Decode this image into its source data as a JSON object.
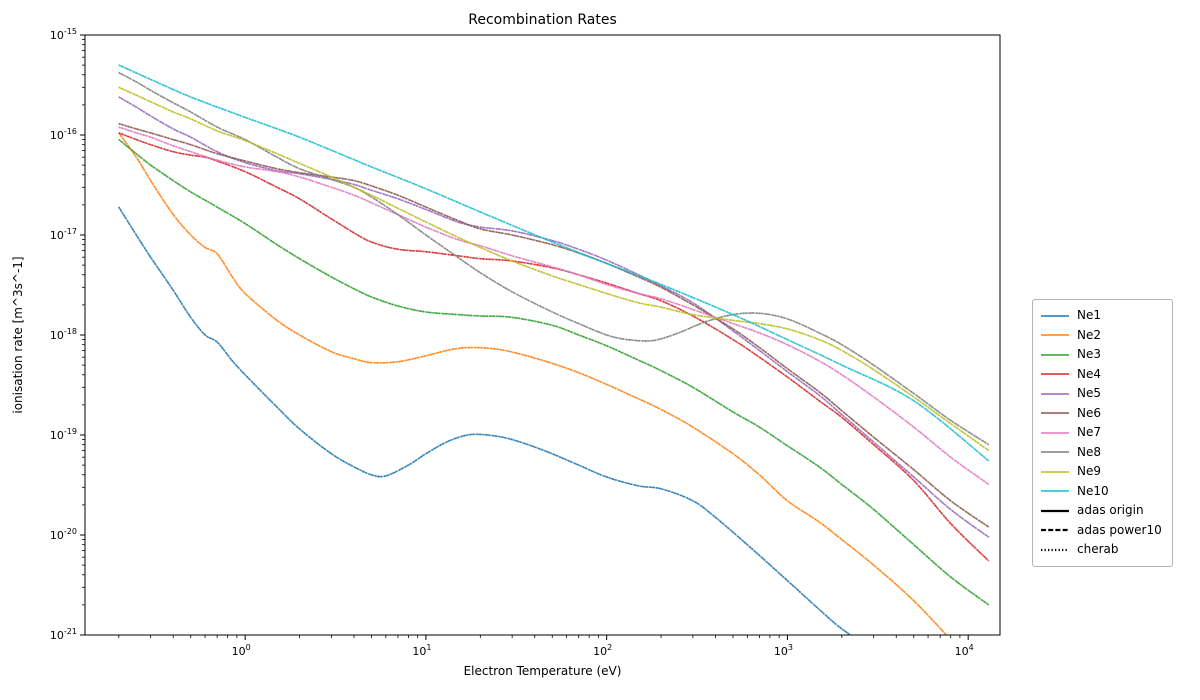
{
  "figure": {
    "background": "#ffffff"
  },
  "chart_data": {
    "type": "line",
    "title": "Recombination Rates",
    "xlabel": "Electron Temperature (eV)",
    "ylabel": "ionisation rate [m^3s^-1]",
    "x_scale": "log",
    "y_scale": "log",
    "grid": false,
    "legend_position": "right-outside",
    "xlim": [
      0.13,
      15000
    ],
    "ylim": [
      1e-21,
      1e-15
    ],
    "x_tick_exponents": [
      0,
      1,
      2,
      3,
      4
    ],
    "y_tick_exponents": [
      -15,
      -16,
      -17,
      -18,
      -19,
      -20,
      -21
    ],
    "style_legend": [
      {
        "label": "adas origin",
        "style": "solid"
      },
      {
        "label": "adas power10",
        "style": "dashed"
      },
      {
        "label": "cherab",
        "style": "dotted"
      }
    ],
    "series": [
      {
        "name": "Ne1",
        "color": "#1f77b4",
        "x": [
          0.2,
          0.25,
          0.3,
          0.4,
          0.5,
          0.6,
          0.7,
          0.85,
          1,
          1.5,
          2,
          3,
          4,
          5,
          6,
          8,
          10,
          13,
          17,
          22,
          30,
          45,
          70,
          100,
          150,
          200,
          300,
          400,
          600,
          1000,
          1500,
          2000,
          2700
        ],
        "y": [
          1.9e-17,
          1e-17,
          6e-18,
          2.8e-18,
          1.5e-18,
          1e-18,
          8.5e-19,
          5.5e-19,
          4e-19,
          1.9e-19,
          1.15e-19,
          6.5e-20,
          4.8e-20,
          4e-20,
          3.9e-20,
          5e-20,
          6.5e-20,
          8.5e-20,
          1e-19,
          1e-19,
          9e-20,
          7e-20,
          5e-20,
          3.8e-20,
          3.1e-20,
          2.9e-20,
          2.2e-20,
          1.5e-20,
          8e-21,
          3.5e-21,
          1.8e-21,
          1.15e-21,
          8e-22
        ]
      },
      {
        "name": "Ne2",
        "color": "#ff7f0e",
        "x": [
          0.2,
          0.25,
          0.3,
          0.4,
          0.5,
          0.6,
          0.7,
          0.85,
          1,
          1.5,
          2,
          3,
          4,
          5,
          7,
          10,
          14,
          18,
          25,
          35,
          50,
          70,
          100,
          150,
          200,
          300,
          500,
          700,
          1000,
          1500,
          2000,
          3000,
          5000,
          8500
        ],
        "y": [
          1.05e-16,
          6e-17,
          3.5e-17,
          1.6e-17,
          1e-17,
          7.5e-18,
          6.5e-18,
          3.8e-18,
          2.6e-18,
          1.4e-18,
          1e-18,
          6.8e-19,
          5.8e-19,
          5.3e-19,
          5.4e-19,
          6.2e-19,
          7.2e-19,
          7.5e-19,
          7.2e-19,
          6.3e-19,
          5.2e-19,
          4.2e-19,
          3.2e-19,
          2.3e-19,
          1.8e-19,
          1.2e-19,
          6.5e-20,
          4e-20,
          2.2e-20,
          1.35e-20,
          9e-21,
          5e-21,
          2.2e-21,
          8e-22
        ]
      },
      {
        "name": "Ne3",
        "color": "#2ca02c",
        "x": [
          0.2,
          0.25,
          0.3,
          0.4,
          0.5,
          0.7,
          1,
          1.5,
          2,
          3,
          4,
          5,
          7,
          10,
          15,
          20,
          30,
          50,
          70,
          100,
          150,
          200,
          300,
          500,
          700,
          1000,
          1500,
          2000,
          3000,
          5000,
          8000,
          13000
        ],
        "y": [
          9e-17,
          6.5e-17,
          5e-17,
          3.5e-17,
          2.7e-17,
          1.9e-17,
          1.3e-17,
          8e-18,
          5.8e-18,
          3.8e-18,
          2.9e-18,
          2.4e-18,
          1.95e-18,
          1.7e-18,
          1.6e-18,
          1.55e-18,
          1.5e-18,
          1.25e-18,
          1e-18,
          7.8e-19,
          5.6e-19,
          4.4e-19,
          3e-19,
          1.7e-19,
          1.2e-19,
          7.8e-20,
          4.8e-20,
          3.2e-20,
          1.8e-20,
          8e-21,
          3.8e-21,
          2e-21
        ]
      },
      {
        "name": "Ne4",
        "color": "#d62728",
        "x": [
          0.2,
          0.25,
          0.3,
          0.4,
          0.5,
          0.6,
          0.7,
          1,
          1.5,
          2,
          3,
          4,
          5,
          7,
          10,
          15,
          20,
          30,
          50,
          70,
          100,
          150,
          200,
          300,
          500,
          700,
          1000,
          1500,
          2000,
          3000,
          5000,
          8000,
          13000
        ],
        "y": [
          1.05e-16,
          9e-17,
          8e-17,
          6.8e-17,
          6.3e-17,
          6e-17,
          5.5e-17,
          4.3e-17,
          3e-17,
          2.3e-17,
          1.45e-17,
          1.05e-17,
          8.5e-18,
          7.2e-18,
          6.8e-18,
          6.2e-18,
          5.8e-18,
          5.5e-18,
          4.7e-18,
          4e-18,
          3.3e-18,
          2.6e-18,
          2.2e-18,
          1.55e-18,
          9e-19,
          6e-19,
          3.8e-19,
          2.2e-19,
          1.5e-19,
          8e-20,
          3.5e-20,
          1.3e-20,
          5.5e-21
        ]
      },
      {
        "name": "Ne5",
        "color": "#9467bd",
        "x": [
          0.2,
          0.25,
          0.3,
          0.4,
          0.5,
          0.7,
          1,
          1.5,
          2,
          3,
          4,
          5,
          7,
          10,
          15,
          20,
          30,
          50,
          70,
          100,
          150,
          200,
          300,
          500,
          700,
          1000,
          1500,
          2000,
          3000,
          5000,
          8000,
          13000
        ],
        "y": [
          2.4e-16,
          1.9e-16,
          1.55e-16,
          1.15e-16,
          9.5e-17,
          6.8e-17,
          5.3e-17,
          4.4e-17,
          4.1e-17,
          3.6e-17,
          3.2e-17,
          2.8e-17,
          2.3e-17,
          1.8e-17,
          1.35e-17,
          1.2e-17,
          1.1e-17,
          8.8e-18,
          7.2e-18,
          5.6e-18,
          4e-18,
          3.1e-18,
          2.1e-18,
          1.1e-18,
          7e-19,
          4.3e-19,
          2.5e-19,
          1.6e-19,
          8.5e-20,
          3.8e-20,
          1.8e-20,
          9.5e-21
        ]
      },
      {
        "name": "Ne6",
        "color": "#8c564b",
        "x": [
          0.2,
          0.25,
          0.3,
          0.4,
          0.5,
          0.7,
          1,
          1.5,
          2,
          3,
          4,
          5,
          7,
          10,
          15,
          20,
          30,
          50,
          70,
          100,
          150,
          200,
          300,
          500,
          700,
          1000,
          1500,
          2000,
          3000,
          5000,
          8000,
          13000
        ],
        "y": [
          1.3e-16,
          1.15e-16,
          1.05e-16,
          9e-17,
          8e-17,
          6.5e-17,
          5.5e-17,
          4.6e-17,
          4.2e-17,
          3.8e-17,
          3.5e-17,
          3.1e-17,
          2.5e-17,
          1.9e-17,
          1.4e-17,
          1.15e-17,
          1e-17,
          8e-18,
          6.6e-18,
          5.2e-18,
          3.8e-18,
          3e-18,
          2e-18,
          1.15e-18,
          7.5e-19,
          4.6e-19,
          2.7e-19,
          1.75e-19,
          9.5e-20,
          4.5e-20,
          2.2e-20,
          1.2e-20
        ]
      },
      {
        "name": "Ne7",
        "color": "#e377c2",
        "x": [
          0.2,
          0.25,
          0.3,
          0.4,
          0.5,
          0.7,
          1,
          1.5,
          2,
          3,
          4,
          5,
          7,
          10,
          15,
          20,
          30,
          50,
          70,
          100,
          150,
          200,
          300,
          500,
          700,
          1000,
          1500,
          2000,
          3000,
          5000,
          8000,
          13000
        ],
        "y": [
          1.2e-16,
          1.05e-16,
          9.5e-17,
          7.8e-17,
          6.8e-17,
          5.6e-17,
          4.8e-17,
          4.3e-17,
          3.8e-17,
          3e-17,
          2.5e-17,
          2.1e-17,
          1.6e-17,
          1.2e-17,
          9e-18,
          7.8e-18,
          6.2e-18,
          4.8e-18,
          4e-18,
          3.2e-18,
          2.6e-18,
          2.3e-18,
          1.8e-18,
          1.3e-18,
          1.05e-18,
          8e-19,
          5.5e-19,
          4e-19,
          2.4e-19,
          1.2e-19,
          6e-20,
          3.2e-20
        ]
      },
      {
        "name": "Ne8",
        "color": "#7f7f7f",
        "x": [
          0.2,
          0.25,
          0.3,
          0.4,
          0.5,
          0.7,
          1,
          1.5,
          2,
          3,
          4,
          5,
          7,
          10,
          15,
          20,
          30,
          50,
          70,
          100,
          130,
          180,
          250,
          350,
          500,
          700,
          1000,
          1500,
          2000,
          3000,
          5000,
          8000,
          13000
        ],
        "y": [
          4.2e-16,
          3.4e-16,
          2.8e-16,
          2.1e-16,
          1.7e-16,
          1.2e-16,
          9e-17,
          6e-17,
          4.6e-17,
          3.6e-17,
          3e-17,
          2.4e-17,
          1.6e-17,
          1e-17,
          6e-18,
          4.2e-18,
          2.7e-18,
          1.7e-18,
          1.3e-18,
          1e-18,
          9e-19,
          8.8e-19,
          1.05e-18,
          1.35e-18,
          1.6e-18,
          1.65e-18,
          1.45e-18,
          1.05e-18,
          8e-19,
          5e-19,
          2.6e-19,
          1.4e-19,
          8e-20
        ]
      },
      {
        "name": "Ne9",
        "color": "#bcbd22",
        "x": [
          0.2,
          0.25,
          0.3,
          0.4,
          0.5,
          0.7,
          1,
          1.5,
          2,
          3,
          4,
          5,
          7,
          10,
          15,
          20,
          30,
          50,
          70,
          100,
          150,
          200,
          300,
          500,
          700,
          1000,
          1500,
          2000,
          3000,
          5000,
          8000,
          13000
        ],
        "y": [
          3e-16,
          2.5e-16,
          2.15e-16,
          1.7e-16,
          1.45e-16,
          1.1e-16,
          8.8e-17,
          6.5e-17,
          5.2e-17,
          3.8e-17,
          3e-17,
          2.5e-17,
          1.85e-17,
          1.35e-17,
          9.5e-18,
          7.5e-18,
          5.5e-18,
          3.9e-18,
          3.2e-18,
          2.6e-18,
          2.1e-18,
          1.9e-18,
          1.6e-18,
          1.4e-18,
          1.3e-18,
          1.15e-18,
          9e-19,
          7e-19,
          4.5e-19,
          2.4e-19,
          1.3e-19,
          7e-20
        ]
      },
      {
        "name": "Ne10",
        "color": "#17becf",
        "x": [
          0.2,
          0.3,
          0.5,
          1,
          2,
          5,
          10,
          20,
          50,
          100,
          200,
          500,
          1000,
          2000,
          5000,
          13000
        ],
        "y": [
          5e-16,
          3.6e-16,
          2.4e-16,
          1.5e-16,
          9.5e-17,
          4.8e-17,
          2.9e-17,
          1.7e-17,
          8.5e-18,
          5.2e-18,
          3.2e-18,
          1.6e-18,
          9e-19,
          5e-19,
          2.2e-19,
          5.5e-20
        ]
      }
    ]
  }
}
